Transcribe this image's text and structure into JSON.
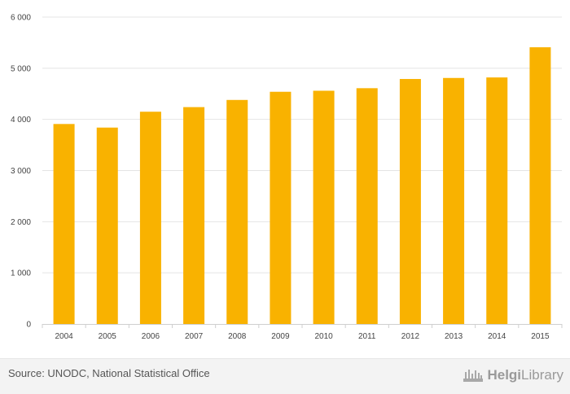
{
  "chart_data": {
    "type": "bar",
    "categories": [
      "2004",
      "2005",
      "2006",
      "2007",
      "2008",
      "2009",
      "2010",
      "2011",
      "2012",
      "2013",
      "2014",
      "2015"
    ],
    "values": [
      3910,
      3840,
      4150,
      4240,
      4380,
      4540,
      4560,
      4610,
      4790,
      4810,
      4820,
      5410
    ],
    "ylim": [
      0,
      6000
    ],
    "yticks": [
      0,
      1000,
      2000,
      3000,
      4000,
      5000,
      6000
    ],
    "ytick_labels": [
      "0",
      "1 000",
      "2 000",
      "3 000",
      "4 000",
      "5 000",
      "6 000"
    ],
    "grid": true,
    "bar_color": "#f9b200"
  },
  "footer": {
    "source": "Source: UNODC, National Statistical Office",
    "brand_name_bold": "Helgi",
    "brand_name_rest": "Library"
  },
  "icons": {
    "brand": "helgi-library-logo-icon"
  }
}
